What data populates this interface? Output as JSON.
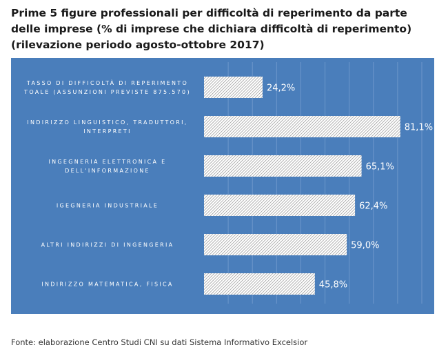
{
  "title": "Prime 5 figure professionali per difficoltà di reperimento da parte delle imprese (% di imprese che dichiara difficoltà di reperimento) (rilevazione periodo agosto-ottobre 2017)",
  "source": "Fonte: elaborazione Centro Studi CNI su dati Sistema Informativo Excelsior",
  "colors": {
    "background": "#4a7ebb",
    "bar_stripe": "#8a8a8a",
    "bar_fill": "#ffffff",
    "text": "#ffffff"
  },
  "chart_data": {
    "type": "bar",
    "orientation": "horizontal",
    "categories": [
      [
        "TASSO DI DIFFICOLTÀ DI REPERIMENTO",
        "TOALE (ASSUNZIONI PREVISTE 875.570)"
      ],
      [
        "INDIRIZZO LINGUISTICO, TRADUTTORI,",
        "INTERPRETI"
      ],
      [
        "INGEGNERIA ELETTRONICA E",
        "DELL'INFORMAZIONE"
      ],
      [
        "IGEGNERIA INDUSTRIALE"
      ],
      [
        "ALTRI INDIRIZZI DI INGENGERIA"
      ],
      [
        "INDIRIZZO MATEMATICA, FISICA"
      ]
    ],
    "values": [
      24.2,
      81.1,
      65.1,
      62.4,
      59.0,
      45.8
    ],
    "data_labels": [
      "24,2%",
      "81,1%",
      "65,1%",
      "62,4%",
      "59,0%",
      "45,8%"
    ],
    "xlim": [
      0,
      90
    ],
    "grid": true,
    "legend": "none"
  }
}
